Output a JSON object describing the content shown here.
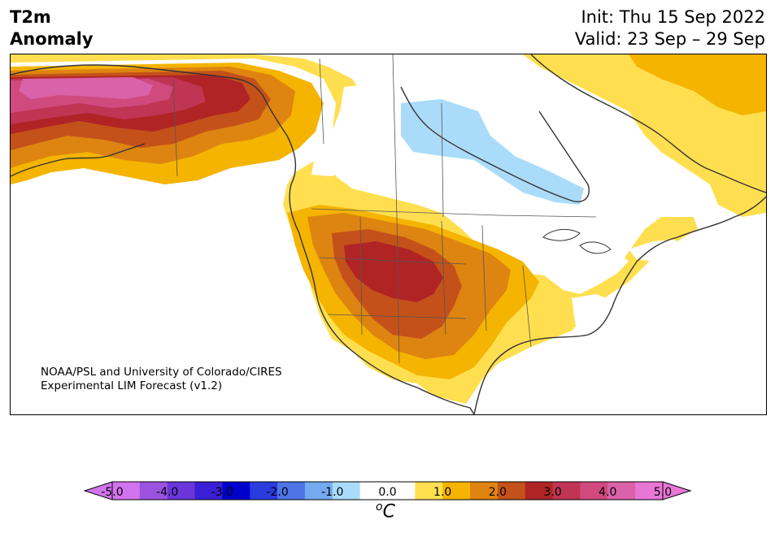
{
  "title": {
    "left_line1": "T2m",
    "left_line2": "Anomaly",
    "init": "Init: Thu 15 Sep 2022",
    "valid": "Valid: 23 Sep – 29 Sep"
  },
  "credit": {
    "line1": "NOAA/PSL and University of Colorado/CIRES",
    "line2": "Experimental LIM Forecast (v1.2)"
  },
  "colorbar": {
    "unit_sup": "o",
    "unit": "C",
    "ticks": [
      "-5.0",
      "-4.0",
      "-3.0",
      "-2.0",
      "-1.0",
      "0.0",
      "1.0",
      "2.0",
      "3.0",
      "4.0",
      "5.0"
    ],
    "colors": [
      "#d273ef",
      "#9c52e0",
      "#6a35db",
      "#3a1fd6",
      "#0000cd",
      "#2a3be0",
      "#4e74e8",
      "#73aaf0",
      "#aadcfa",
      "#ffffff",
      "#ffffff",
      "#ffdf4f",
      "#f5b400",
      "#de8410",
      "#c4511a",
      "#b02426",
      "#c03454",
      "#d04a7e",
      "#da62a8",
      "#e876d6"
    ],
    "under_color": "#d273ef",
    "over_color": "#e876d6"
  },
  "map": {
    "region": "North America",
    "field": "2m temperature anomaly"
  }
}
